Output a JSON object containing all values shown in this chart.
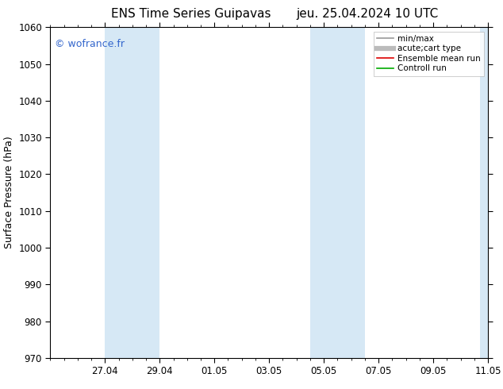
{
  "title_left": "ENS Time Series Guipavas",
  "title_right": "jeu. 25.04.2024 10 UTC",
  "ylabel": "Surface Pressure (hPa)",
  "ylim": [
    970,
    1060
  ],
  "yticks": [
    970,
    980,
    990,
    1000,
    1010,
    1020,
    1030,
    1040,
    1050,
    1060
  ],
  "shaded_bands": [
    {
      "xmin": 2.0,
      "xmax": 4.0
    },
    {
      "xmin": 9.5,
      "xmax": 11.5
    }
  ],
  "band_right_partial": {
    "xmin": 15.7,
    "xmax": 16.0
  },
  "shade_color": "#d6e8f5",
  "watermark": "© wofrance.fr",
  "watermark_color": "#3366cc",
  "legend_entries": [
    {
      "label": "min/max",
      "color": "#999999",
      "lw": 1.2
    },
    {
      "label": "acute;cart type",
      "color": "#bbbbbb",
      "lw": 4.5
    },
    {
      "label": "Ensemble mean run",
      "color": "#dd0000",
      "lw": 1.2
    },
    {
      "label": "Controll run",
      "color": "#00aa00",
      "lw": 1.2
    }
  ],
  "xtick_labels": [
    "27.04",
    "29.04",
    "01.05",
    "03.05",
    "05.05",
    "07.05",
    "09.05",
    "11.05"
  ],
  "xtick_positions": [
    2,
    4,
    6,
    8,
    10,
    12,
    14,
    16
  ],
  "xlim": [
    0,
    16
  ],
  "bg_color": "#ffffff",
  "title_fontsize": 11,
  "tick_fontsize": 8.5,
  "ylabel_fontsize": 9
}
